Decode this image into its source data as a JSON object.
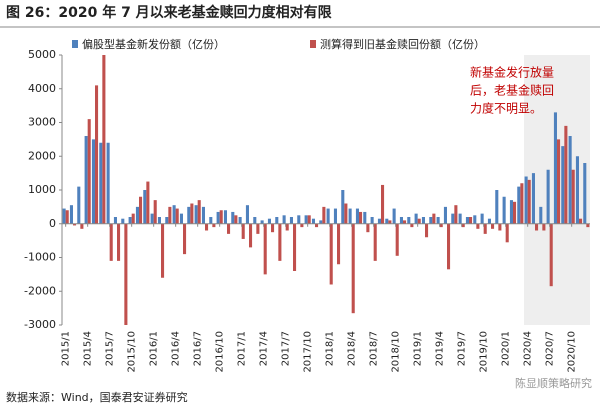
{
  "chart_data": {
    "type": "bar",
    "title": "图 26：2020 年 7 月以来老基金赎回力度相对有限",
    "categories": [
      "2015/1",
      null,
      null,
      "2015/4",
      null,
      null,
      "2015/7",
      null,
      null,
      "2015/10",
      null,
      null,
      "2016/1",
      null,
      null,
      "2016/4",
      null,
      null,
      "2016/7",
      null,
      null,
      "2016/10",
      null,
      null,
      "2017/1",
      null,
      null,
      "2017/4",
      null,
      null,
      "2017/7",
      null,
      null,
      "2017/10",
      null,
      null,
      "2018/1",
      null,
      null,
      "2018/4",
      null,
      null,
      "2018/7",
      null,
      null,
      "2018/10",
      null,
      null,
      "2019/1",
      null,
      null,
      "2019/4",
      null,
      null,
      "2019/7",
      null,
      null,
      "2019/10",
      null,
      null,
      "2020/1",
      null,
      null,
      "2020/4",
      null,
      null,
      "2020/7",
      null,
      null,
      "2020/10",
      null,
      null
    ],
    "series": [
      {
        "name": "偏股型基金新发份额（亿份）",
        "color": "#4f81bd",
        "values": [
          450,
          550,
          1100,
          2600,
          2500,
          2400,
          2400,
          200,
          150,
          200,
          500,
          1000,
          300,
          200,
          200,
          550,
          300,
          500,
          550,
          500,
          200,
          350,
          400,
          350,
          200,
          550,
          200,
          100,
          150,
          200,
          250,
          200,
          250,
          250,
          150,
          100,
          450,
          450,
          1000,
          450,
          450,
          350,
          200,
          150,
          150,
          450,
          200,
          200,
          300,
          200,
          200,
          200,
          500,
          300,
          300,
          200,
          250,
          300,
          150,
          1000,
          800,
          700,
          1100,
          1400,
          1500,
          500,
          1600,
          3300,
          2300,
          2600,
          2000,
          1800
        ]
      },
      {
        "name": "测算得到旧基金赎回份额（亿份）",
        "color": "#c0504d",
        "values": [
          400,
          -50,
          -150,
          3100,
          4100,
          5000,
          -1100,
          -1100,
          -3000,
          300,
          800,
          1250,
          700,
          -1600,
          500,
          450,
          -900,
          600,
          700,
          -200,
          -100,
          400,
          -300,
          250,
          -450,
          -700,
          -300,
          -1500,
          -250,
          -1100,
          -200,
          -1400,
          -100,
          250,
          -100,
          500,
          -1800,
          -1200,
          600,
          -2650,
          350,
          -250,
          -1100,
          1150,
          100,
          -950,
          100,
          -100,
          150,
          -400,
          300,
          -100,
          -1350,
          550,
          -100,
          200,
          -150,
          -300,
          -150,
          -200,
          -550,
          650,
          1200,
          1300,
          -200,
          -200,
          -1850,
          2500,
          2900,
          1600,
          150,
          -100
        ]
      }
    ],
    "ylim": [
      -3000,
      5000
    ],
    "yticks": [
      -3000,
      -2000,
      -1000,
      0,
      1000,
      2000,
      3000,
      4000,
      5000
    ],
    "annotation": [
      "新基金发行放量",
      "后，老基金赎回",
      "力度不明显。"
    ],
    "source": "数据来源：Wind，国泰君安证券研究",
    "watermark": "陈显顺策略研究"
  }
}
